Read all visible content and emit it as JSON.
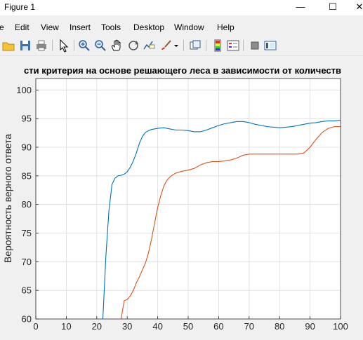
{
  "window": {
    "title": "Figure 1",
    "minimize_glyph": "—",
    "maximize_glyph": "☐",
    "close_glyph": "✕"
  },
  "menu": {
    "items": [
      "e",
      "Edit",
      "View",
      "Insert",
      "Tools",
      "Desktop",
      "Window",
      "Help"
    ]
  },
  "toolbar": {
    "icons": [
      "open-folder-icon",
      "save-icon",
      "print-icon",
      "pointer-icon",
      "zoom-in-icon",
      "zoom-out-icon",
      "pan-hand-icon",
      "rotate-3d-icon",
      "data-cursor-icon",
      "brush-icon",
      "brush-dropdown-icon",
      "link-plot-icon",
      "colorbar-icon",
      "legend-icon",
      "hide-plot-tools-icon",
      "show-plot-tools-icon"
    ]
  },
  "chart_data": {
    "type": "line",
    "title": "сти критерия на основе решающего леса в зависимости от количеств",
    "xlabel": "",
    "ylabel": "Вероятность верного ответа",
    "xlim": [
      0,
      100
    ],
    "ylim": [
      60,
      102
    ],
    "xticks": [
      "0",
      "10",
      "20",
      "30",
      "40",
      "50",
      "60",
      "70",
      "80",
      "90",
      "100"
    ],
    "yticks": [
      "60",
      "65",
      "70",
      "75",
      "80",
      "85",
      "90",
      "95",
      "100"
    ],
    "grid": true,
    "colors": {
      "series1": "#0072bd",
      "series2": "#d95319"
    },
    "series": [
      {
        "x": [
          22,
          23,
          24,
          25,
          26,
          27,
          28,
          29,
          30,
          31,
          32,
          33,
          34,
          35,
          36,
          37,
          38,
          40,
          42,
          44,
          46,
          48,
          50,
          52,
          54,
          56,
          58,
          60,
          62,
          64,
          66,
          68,
          70,
          72,
          74,
          76,
          78,
          80,
          82,
          84,
          86,
          88,
          90,
          92,
          94,
          96,
          98,
          100
        ],
        "values": [
          60,
          71,
          79,
          83.5,
          84.6,
          85,
          85.1,
          85.3,
          85.7,
          86.5,
          87.6,
          89,
          90.7,
          91.9,
          92.6,
          92.9,
          93.1,
          93.3,
          93.4,
          93.2,
          93.0,
          93.0,
          92.9,
          92.7,
          92.7,
          93.0,
          93.4,
          93.8,
          94.1,
          94.3,
          94.5,
          94.5,
          94.3,
          94.0,
          93.8,
          93.6,
          93.5,
          93.4,
          93.5,
          93.6,
          93.8,
          94.0,
          94.2,
          94.3,
          94.5,
          94.6,
          94.6,
          94.7
        ]
      },
      {
        "x": [
          28,
          29,
          30,
          31,
          32,
          33,
          34,
          35,
          36,
          37,
          38,
          39,
          40,
          41,
          42,
          43,
          44,
          45,
          46,
          48,
          50,
          52,
          54,
          56,
          58,
          60,
          62,
          64,
          66,
          68,
          70,
          72,
          74,
          76,
          78,
          80,
          82,
          84,
          86,
          88,
          90,
          92,
          94,
          96,
          98,
          100
        ],
        "values": [
          60,
          63.2,
          63.4,
          64,
          65,
          66.3,
          67.4,
          68.6,
          69.8,
          71.6,
          74,
          76.8,
          79.5,
          81.5,
          83.2,
          84.2,
          84.8,
          85.2,
          85.5,
          85.8,
          86,
          86.3,
          86.9,
          87.3,
          87.5,
          87.5,
          87.6,
          87.8,
          88.1,
          88.6,
          88.8,
          88.8,
          88.8,
          88.8,
          88.8,
          88.8,
          88.8,
          88.8,
          88.8,
          89,
          90,
          91.4,
          92.6,
          93.3,
          93.6,
          93.6
        ]
      }
    ]
  }
}
